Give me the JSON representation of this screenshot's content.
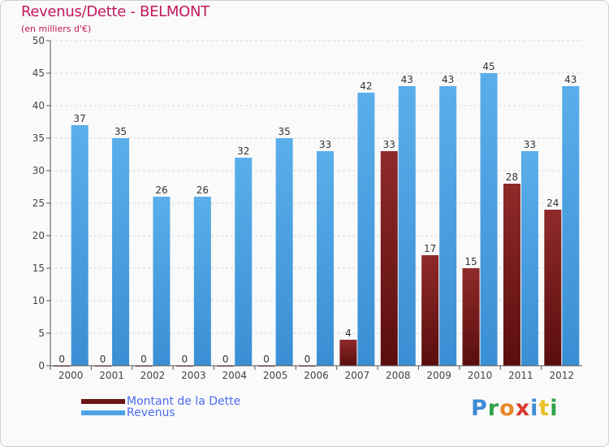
{
  "title": "Revenus/Dette - BELMONT",
  "subtitle": "(en milliers d'€)",
  "logo": {
    "text": "Proxiti",
    "colors": [
      "#3e8ad6",
      "#2fa34a",
      "#e8862a",
      "#d8382e",
      "#3e8ad6",
      "#e8c224",
      "#2fa34a"
    ]
  },
  "colors": {
    "dette": "#7a1f1f",
    "revenus": "#4ea3e6",
    "axis": "#555555",
    "grid": "#cccccc"
  },
  "chart_data": {
    "type": "bar",
    "title": "Revenus/Dette - BELMONT",
    "ylabel": "(en milliers d'€)",
    "ylim": [
      0,
      50
    ],
    "yticks": [
      0,
      5,
      10,
      15,
      20,
      25,
      30,
      35,
      40,
      45,
      50
    ],
    "categories": [
      "2000",
      "2001",
      "2002",
      "2003",
      "2004",
      "2005",
      "2006",
      "2007",
      "2008",
      "2009",
      "2010",
      "2011",
      "2012"
    ],
    "series": [
      {
        "name": "Montant de la Dette",
        "values": [
          0,
          0,
          0,
          0,
          0,
          0,
          0,
          4,
          33,
          17,
          15,
          28,
          24
        ]
      },
      {
        "name": "Revenus",
        "values": [
          37,
          35,
          26,
          26,
          32,
          35,
          33,
          42,
          43,
          43,
          45,
          33,
          43
        ]
      }
    ],
    "legend": "bottom-left"
  }
}
